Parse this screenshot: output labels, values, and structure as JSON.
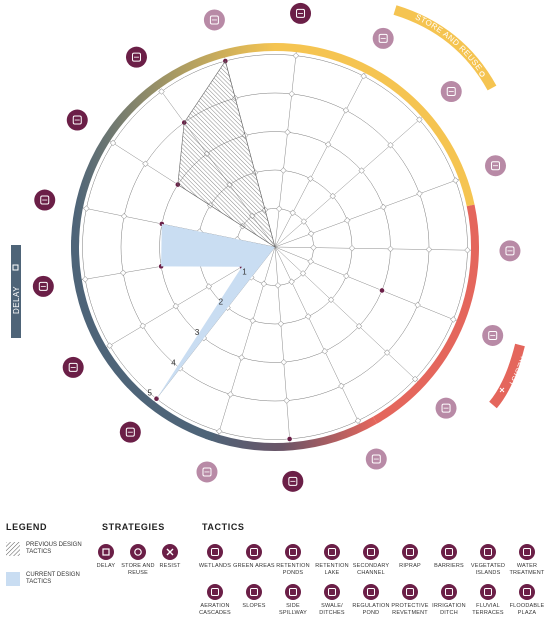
{
  "ring_labels": [
    "1",
    "2",
    "3",
    "4",
    "5"
  ],
  "bands": {
    "store_and_reuse": "STORE AND REUSE",
    "resist": "RESIST",
    "delay": "DELAY"
  },
  "colors": {
    "delay": "#4e6478",
    "store_reuse": "#f5c451",
    "resist": "#e4665c",
    "tactic_dark": "#6b1f47",
    "tactic_light": "#b88aa6",
    "current_fill": "#c9ddf2",
    "previous_fill": "#555555"
  },
  "spokes": [
    {
      "icon": "wetlands-icon",
      "tone": "dark"
    },
    {
      "icon": "slopes-icon",
      "tone": "dark"
    },
    {
      "icon": "water-treatment-icon",
      "tone": "dark"
    },
    {
      "icon": "barriers-icon",
      "tone": "dark"
    },
    {
      "icon": "riprap-icon",
      "tone": "dark"
    },
    {
      "icon": "vegetated-islands-icon",
      "tone": "dark"
    },
    {
      "icon": "protective-revetment-icon",
      "tone": "light"
    },
    {
      "icon": "fluvial-terraces-icon",
      "tone": "dark"
    },
    {
      "icon": "secondary-channel-icon",
      "tone": "light"
    },
    {
      "icon": "irrigation-ditch-icon",
      "tone": "light"
    },
    {
      "icon": "floodable-plaza-icon",
      "tone": "light"
    },
    {
      "icon": "side-spillway-icon",
      "tone": "light"
    },
    {
      "icon": "swale-ditches-icon",
      "tone": "light"
    },
    {
      "icon": "aeration-cascades-icon",
      "tone": "light"
    },
    {
      "icon": "retention-pond-icon",
      "tone": "light"
    },
    {
      "icon": "green-areas-icon",
      "tone": "dark"
    },
    {
      "icon": "retention-ponds-icon",
      "tone": "light"
    }
  ],
  "chart_data": {
    "type": "radar",
    "max": 5,
    "series": [
      {
        "name": "CURRENT DESIGN TACTICS",
        "values": [
          5,
          1,
          3,
          3,
          0,
          0,
          0,
          0,
          0,
          0,
          0,
          0,
          3,
          0,
          0,
          5,
          0
        ]
      },
      {
        "name": "PREVIOUS DESIGN TACTICS",
        "values": [
          0,
          0,
          0,
          0,
          3,
          4,
          5,
          0,
          0,
          0,
          0,
          0,
          0,
          0,
          0,
          0,
          0
        ]
      }
    ]
  },
  "legend": {
    "title": "LEGEND",
    "previous": "PREVIOUS DESIGN TACTICS",
    "current": "CURRENT DESIGN TACTICS",
    "strategies_title": "STRATEGIES",
    "strategies": [
      {
        "label": "DELAY",
        "icon": "square-icon"
      },
      {
        "label": "STORE AND REUSE",
        "icon": "circle-icon"
      },
      {
        "label": "RESIST",
        "icon": "x-icon"
      }
    ],
    "tactics_title": "TACTICS",
    "tactics_row1": [
      "WETLANDS",
      "GREEN AREAS",
      "RETENTION PONDS",
      "RETENTION LAKE",
      "SECONDARY CHANNEL",
      "RIPRAP",
      "BARRIERS",
      "VEGETATED ISLANDS",
      "WATER TREATMENT"
    ],
    "tactics_row2": [
      "AERATION CASCADES",
      "SLOPES",
      "SIDE SPILLWAY",
      "SWALE/ DITCHES",
      "REGULATION POND",
      "PROTECTIVE REVETMENT",
      "IRRIGATION DITCH",
      "FLUVIAL TERRACES",
      "FLOODABLE PLAZA"
    ]
  }
}
